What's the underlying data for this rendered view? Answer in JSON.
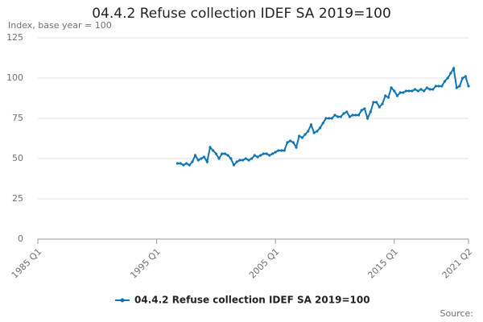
{
  "chart_data": {
    "type": "line",
    "title": "04.4.2 Refuse collection IDEF SA 2019=100",
    "subtitle": "Index, base year = 100",
    "source": "Source:",
    "categories": [
      "1985 Q1",
      null,
      null,
      null,
      null,
      null,
      null,
      null,
      null,
      null,
      null,
      null,
      null,
      null,
      null,
      null,
      null,
      null,
      null,
      null,
      null,
      null,
      null,
      null,
      null,
      null,
      null,
      null,
      null,
      null,
      null,
      null,
      null,
      null,
      null,
      null,
      null,
      null,
      null,
      null,
      "1995 Q1",
      null,
      null,
      null,
      null,
      null,
      null,
      null,
      null,
      null,
      null,
      null,
      null,
      null,
      null,
      null,
      null,
      null,
      null,
      null,
      null,
      null,
      null,
      null,
      null,
      null,
      null,
      null,
      null,
      null,
      null,
      null,
      null,
      null,
      null,
      null,
      null,
      null,
      null,
      null,
      "2005 Q1",
      null,
      null,
      null,
      null,
      null,
      null,
      null,
      null,
      null,
      null,
      null,
      null,
      null,
      null,
      null,
      null,
      null,
      null,
      null,
      null,
      null,
      null,
      null,
      null,
      null,
      null,
      null,
      null,
      null,
      null,
      null,
      null,
      null,
      null,
      null,
      null,
      null,
      null,
      null,
      "2015 Q1",
      null,
      null,
      null,
      null,
      null,
      null,
      null,
      null,
      null,
      null,
      null,
      null,
      null,
      null,
      null,
      null,
      null,
      null,
      null,
      null,
      null,
      null,
      null,
      null,
      "2021 Q2"
    ],
    "series": [
      {
        "name": "04.4.2 Refuse collection IDEF SA 2019=100",
        "color": "#0f75b4",
        "values": [
          null,
          null,
          null,
          null,
          null,
          null,
          null,
          null,
          null,
          null,
          null,
          null,
          null,
          null,
          null,
          null,
          null,
          null,
          null,
          null,
          null,
          null,
          null,
          null,
          null,
          null,
          null,
          null,
          null,
          null,
          null,
          null,
          null,
          null,
          null,
          null,
          null,
          null,
          null,
          null,
          null,
          null,
          null,
          null,
          null,
          null,
          null,
          47,
          47,
          46,
          47,
          46,
          48,
          52,
          49,
          50,
          51,
          48,
          57,
          55,
          53,
          50,
          53,
          53,
          52,
          50,
          46,
          48,
          49,
          49,
          50,
          49,
          50,
          52,
          51,
          52,
          53,
          53,
          52,
          53,
          54,
          55,
          55,
          55,
          60,
          61,
          60,
          57,
          64,
          63,
          65,
          67,
          71,
          66,
          67,
          69,
          72,
          75,
          75,
          75,
          77,
          76,
          76,
          78,
          79,
          76,
          77,
          77,
          77,
          80,
          81,
          75,
          79,
          85,
          85,
          82,
          84,
          89,
          88,
          94,
          92,
          89,
          91,
          91,
          92,
          92,
          92,
          93,
          92,
          93,
          92,
          94,
          93,
          93,
          95,
          95,
          95,
          98,
          100,
          103,
          106,
          94,
          95,
          100,
          101,
          95
        ]
      }
    ],
    "ylim": [
      0,
      125
    ],
    "yticks": [
      0,
      25,
      50,
      75,
      100,
      125
    ],
    "grid": true
  }
}
